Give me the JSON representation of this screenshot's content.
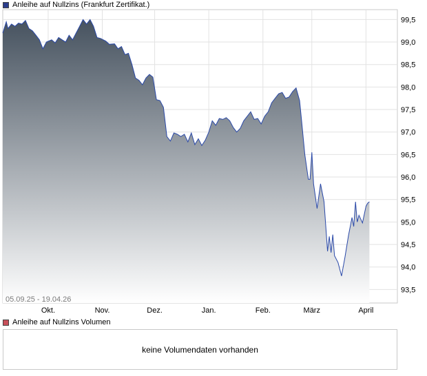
{
  "price_legend": {
    "label": "Anleihe auf Nullzins (Frankfurt Zertifikat.)",
    "color": "#2b3d8c"
  },
  "volume_legend": {
    "label": "Anleihe auf Nullzins Volumen",
    "color": "#c8505a"
  },
  "volume_message": "keine Volumendaten vorhanden",
  "date_range": "05.09.25 - 19.04.26",
  "colors": {
    "line": "#2948a8",
    "fill_top": "#46525f",
    "fill_bottom": "#ffffff",
    "grid": "#e2e2e2"
  },
  "chart_data": {
    "type": "area",
    "title": "Anleihe auf Nullzins (Frankfurt Zertifikat.)",
    "xlabel": "",
    "ylabel": "",
    "ylim": [
      93.2,
      99.72
    ],
    "grid": true,
    "x_range": [
      "2025-09-05",
      "2026-04-19"
    ],
    "x_ticks": [
      {
        "label": "Okt.",
        "date": "2025-10-01"
      },
      {
        "label": "Nov.",
        "date": "2025-11-01"
      },
      {
        "label": "Dez.",
        "date": "2025-12-01"
      },
      {
        "label": "Jan.",
        "date": "2026-01-01"
      },
      {
        "label": "Feb.",
        "date": "2026-02-01"
      },
      {
        "label": "März",
        "date": "2026-03-01"
      },
      {
        "label": "April",
        "date": "2026-04-01"
      }
    ],
    "y_ticks": [
      "93,5",
      "94,0",
      "94,5",
      "95,0",
      "95,5",
      "96,0",
      "96,5",
      "97,0",
      "97,5",
      "98,0",
      "98,5",
      "99,0",
      "99,5"
    ],
    "series": [
      {
        "values": [
          [
            "2025-09-05",
            99.2
          ],
          [
            "2025-09-07",
            99.45
          ],
          [
            "2025-09-08",
            99.3
          ],
          [
            "2025-09-10",
            99.4
          ],
          [
            "2025-09-12",
            99.35
          ],
          [
            "2025-09-14",
            99.42
          ],
          [
            "2025-09-16",
            99.4
          ],
          [
            "2025-09-18",
            99.48
          ],
          [
            "2025-09-20",
            99.3
          ],
          [
            "2025-09-22",
            99.25
          ],
          [
            "2025-09-24",
            99.15
          ],
          [
            "2025-09-26",
            99.05
          ],
          [
            "2025-09-28",
            98.85
          ],
          [
            "2025-09-30",
            99.0
          ],
          [
            "2025-10-03",
            99.05
          ],
          [
            "2025-10-05",
            98.98
          ],
          [
            "2025-10-07",
            99.1
          ],
          [
            "2025-10-09",
            99.05
          ],
          [
            "2025-10-11",
            99.0
          ],
          [
            "2025-10-13",
            99.15
          ],
          [
            "2025-10-15",
            99.05
          ],
          [
            "2025-10-17",
            99.2
          ],
          [
            "2025-10-19",
            99.35
          ],
          [
            "2025-10-21",
            99.5
          ],
          [
            "2025-10-23",
            99.4
          ],
          [
            "2025-10-25",
            99.5
          ],
          [
            "2025-10-27",
            99.35
          ],
          [
            "2025-10-29",
            99.1
          ],
          [
            "2025-10-31",
            99.08
          ],
          [
            "2025-11-03",
            99.02
          ],
          [
            "2025-11-05",
            98.95
          ],
          [
            "2025-11-08",
            98.96
          ],
          [
            "2025-11-10",
            98.85
          ],
          [
            "2025-11-12",
            98.9
          ],
          [
            "2025-11-14",
            98.72
          ],
          [
            "2025-11-16",
            98.75
          ],
          [
            "2025-11-18",
            98.5
          ],
          [
            "2025-11-20",
            98.2
          ],
          [
            "2025-11-22",
            98.15
          ],
          [
            "2025-11-24",
            98.05
          ],
          [
            "2025-11-26",
            98.2
          ],
          [
            "2025-11-28",
            98.28
          ],
          [
            "2025-11-30",
            98.22
          ],
          [
            "2025-12-02",
            97.72
          ],
          [
            "2025-12-04",
            97.7
          ],
          [
            "2025-12-06",
            97.55
          ],
          [
            "2025-12-08",
            96.9
          ],
          [
            "2025-12-10",
            96.8
          ],
          [
            "2025-12-12",
            96.98
          ],
          [
            "2025-12-14",
            96.95
          ],
          [
            "2025-12-16",
            96.9
          ],
          [
            "2025-12-18",
            96.95
          ],
          [
            "2025-12-20",
            96.78
          ],
          [
            "2025-12-22",
            96.98
          ],
          [
            "2025-12-24",
            96.72
          ],
          [
            "2025-12-26",
            96.85
          ],
          [
            "2025-12-28",
            96.7
          ],
          [
            "2025-12-30",
            96.82
          ],
          [
            "2026-01-01",
            97.0
          ],
          [
            "2026-01-03",
            97.25
          ],
          [
            "2026-01-05",
            97.15
          ],
          [
            "2026-01-07",
            97.3
          ],
          [
            "2026-01-09",
            97.28
          ],
          [
            "2026-01-11",
            97.32
          ],
          [
            "2026-01-13",
            97.25
          ],
          [
            "2026-01-15",
            97.1
          ],
          [
            "2026-01-17",
            97.0
          ],
          [
            "2026-01-19",
            97.08
          ],
          [
            "2026-01-21",
            97.25
          ],
          [
            "2026-01-23",
            97.35
          ],
          [
            "2026-01-25",
            97.45
          ],
          [
            "2026-01-27",
            97.28
          ],
          [
            "2026-01-29",
            97.3
          ],
          [
            "2026-01-31",
            97.18
          ],
          [
            "2026-02-02",
            97.35
          ],
          [
            "2026-02-04",
            97.45
          ],
          [
            "2026-02-06",
            97.65
          ],
          [
            "2026-02-08",
            97.75
          ],
          [
            "2026-02-10",
            97.85
          ],
          [
            "2026-02-12",
            97.88
          ],
          [
            "2026-02-14",
            97.75
          ],
          [
            "2026-02-16",
            97.78
          ],
          [
            "2026-02-18",
            97.9
          ],
          [
            "2026-02-20",
            97.98
          ],
          [
            "2026-02-22",
            97.7
          ],
          [
            "2026-02-23",
            97.3
          ],
          [
            "2026-02-25",
            96.5
          ],
          [
            "2026-02-27",
            95.95
          ],
          [
            "2026-02-28",
            95.95
          ],
          [
            "2026-03-01",
            96.55
          ],
          [
            "2026-03-02",
            95.85
          ],
          [
            "2026-03-04",
            95.3
          ],
          [
            "2026-03-06",
            95.85
          ],
          [
            "2026-03-08",
            95.45
          ],
          [
            "2026-03-10",
            94.35
          ],
          [
            "2026-03-11",
            94.68
          ],
          [
            "2026-03-12",
            94.32
          ],
          [
            "2026-03-13",
            94.72
          ],
          [
            "2026-03-14",
            94.25
          ],
          [
            "2026-03-16",
            94.1
          ],
          [
            "2026-03-18",
            93.8
          ],
          [
            "2026-03-20",
            94.22
          ],
          [
            "2026-03-22",
            94.7
          ],
          [
            "2026-03-24",
            95.1
          ],
          [
            "2026-03-25",
            94.9
          ],
          [
            "2026-03-26",
            95.45
          ],
          [
            "2026-03-27",
            95.0
          ],
          [
            "2026-03-28",
            95.15
          ],
          [
            "2026-03-30",
            94.98
          ],
          [
            "2026-04-01",
            95.35
          ],
          [
            "2026-04-02",
            95.42
          ],
          [
            "2026-04-03",
            95.45
          ]
        ]
      }
    ]
  }
}
